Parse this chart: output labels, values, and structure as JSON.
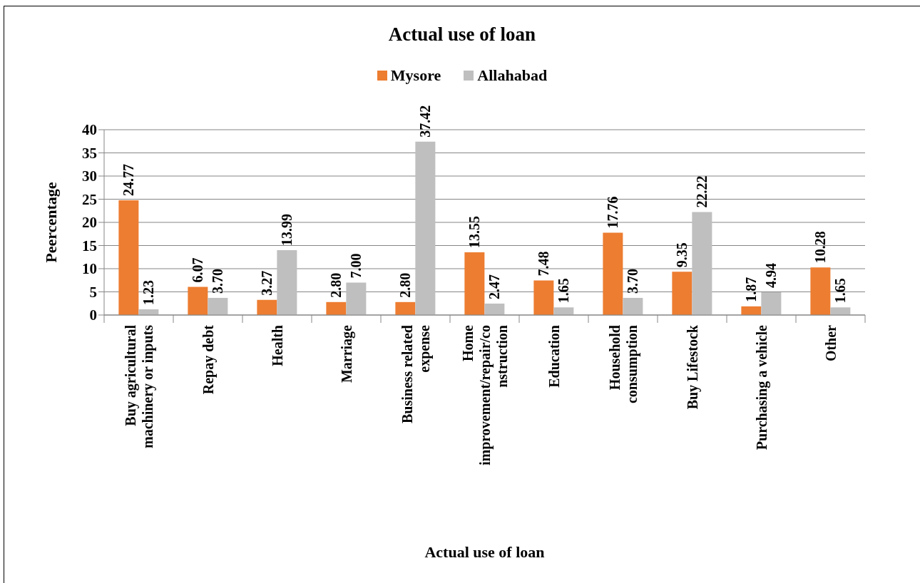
{
  "chart_data": {
    "type": "bar",
    "title": "Actual use of loan",
    "xlabel": "Actual use of loan",
    "ylabel": "Peercentage",
    "categories": [
      "Buy agricultural machinery or inputs",
      "Repay debt",
      "Health",
      "Marriage",
      "Business related expense",
      "Home improvement/repair/construction",
      "Education",
      "Household consumption",
      "Buy Lifestock",
      "Purchasing a vehicle",
      "Other"
    ],
    "series": [
      {
        "name": "Mysore",
        "color": "#ed7d31",
        "values": [
          24.77,
          6.07,
          3.27,
          2.8,
          2.8,
          13.55,
          7.48,
          17.76,
          9.35,
          1.87,
          10.28
        ],
        "value_labels": [
          "24.77",
          "6.07",
          "3.27",
          "2.80",
          "2.80",
          "13.55",
          "7.48",
          "17.76",
          "9.35",
          "1.87",
          "10.28"
        ]
      },
      {
        "name": "Allahabad",
        "color": "#bfbfbf",
        "values": [
          1.23,
          3.7,
          13.99,
          7.0,
          37.42,
          2.47,
          1.65,
          3.7,
          22.22,
          4.94,
          1.65
        ],
        "value_labels": [
          "1.23",
          "3.70",
          "13.99",
          "7.00",
          "37.42",
          "2.47",
          "1.65",
          "3.70",
          "22.22",
          "4.94",
          "1.65"
        ]
      }
    ],
    "ylim": [
      0,
      40
    ],
    "yticks": [
      0,
      5,
      10,
      15,
      20,
      25,
      30,
      35,
      40
    ],
    "grid": "y",
    "legend": "top"
  }
}
